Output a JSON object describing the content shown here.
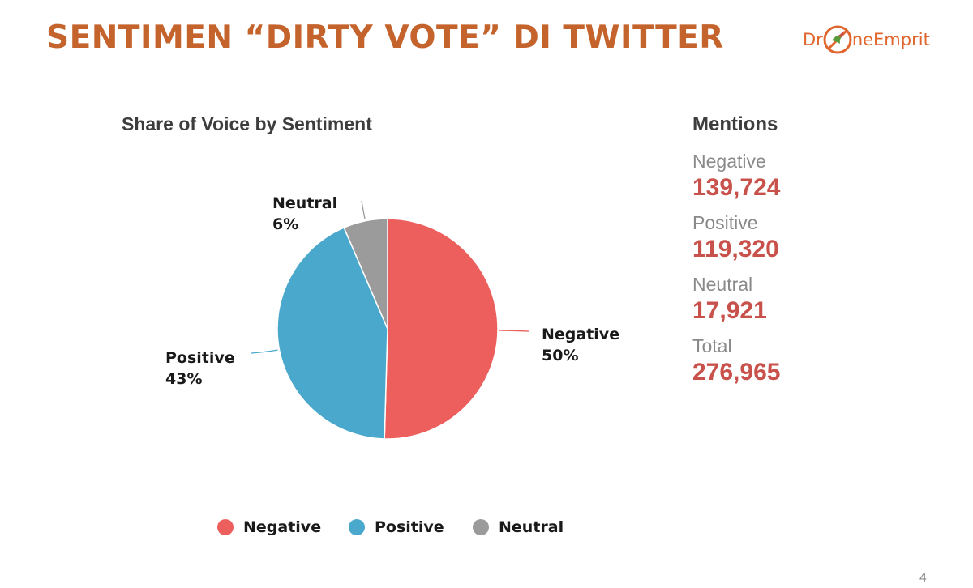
{
  "slide": {
    "title": "SENTIMEN “DIRTY VOTE” DI TWITTER",
    "page_number": "4"
  },
  "logo": {
    "text_prefix": "Dr",
    "text_suffix": "neEmprit",
    "colors": {
      "text": "#e0662e",
      "ring": "#e0662e",
      "bird": "#5a9b3c"
    }
  },
  "chart_data": {
    "type": "pie",
    "title": "Share of Voice by Sentiment",
    "slices": [
      {
        "label": "Negative",
        "percent_label": "50%",
        "value": 139724,
        "color": "#ec5f5c"
      },
      {
        "label": "Positive",
        "percent_label": "43%",
        "value": 119320,
        "color": "#4aa8cc"
      },
      {
        "label": "Neutral",
        "percent_label": "6%",
        "value": 17921,
        "color": "#9b9b9b"
      }
    ],
    "legend": [
      "Negative",
      "Positive",
      "Neutral"
    ],
    "legend_position": "bottom"
  },
  "mentions": {
    "title": "Mentions",
    "items": [
      {
        "label": "Negative",
        "value": "139,724"
      },
      {
        "label": "Positive",
        "value": "119,320"
      },
      {
        "label": "Neutral",
        "value": "17,921"
      },
      {
        "label": "Total",
        "value": "276,965"
      }
    ]
  }
}
